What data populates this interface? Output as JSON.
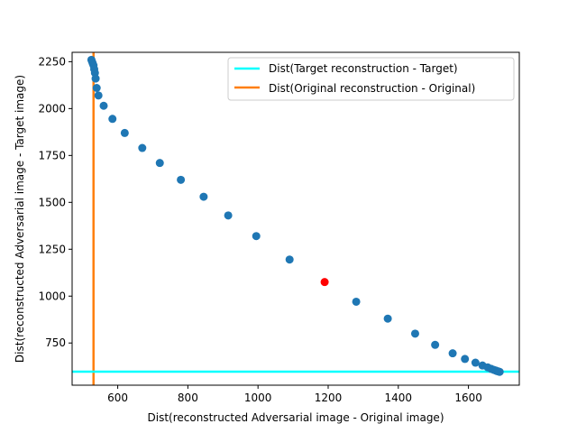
{
  "chart_data": {
    "type": "scatter",
    "title": "",
    "xlabel": "Dist(reconstructed Adversarial image - Original image)",
    "ylabel": "Dist(reconstructed Adversarial image - Target image)",
    "xlim": [
      470,
      1745
    ],
    "ylim": [
      525,
      2300
    ],
    "xticks": [
      400,
      600,
      800,
      1000,
      1200,
      1400,
      1600
    ],
    "yticks": [
      750,
      1000,
      1250,
      1500,
      1750,
      2000,
      2250
    ],
    "grid": false,
    "legend_position": "top-right",
    "points_color": "#1f77b4",
    "highlight_color": "#ff0000",
    "points": [
      {
        "x": 525,
        "y": 2260
      },
      {
        "x": 527,
        "y": 2250
      },
      {
        "x": 529,
        "y": 2240
      },
      {
        "x": 531,
        "y": 2230
      },
      {
        "x": 533,
        "y": 2210
      },
      {
        "x": 535,
        "y": 2190
      },
      {
        "x": 537,
        "y": 2160
      },
      {
        "x": 540,
        "y": 2110
      },
      {
        "x": 545,
        "y": 2070
      },
      {
        "x": 560,
        "y": 2015
      },
      {
        "x": 585,
        "y": 1945
      },
      {
        "x": 620,
        "y": 1870
      },
      {
        "x": 670,
        "y": 1790
      },
      {
        "x": 720,
        "y": 1710
      },
      {
        "x": 780,
        "y": 1620
      },
      {
        "x": 845,
        "y": 1530
      },
      {
        "x": 915,
        "y": 1430
      },
      {
        "x": 995,
        "y": 1320
      },
      {
        "x": 1090,
        "y": 1195
      },
      {
        "x": 1280,
        "y": 970
      },
      {
        "x": 1370,
        "y": 880
      },
      {
        "x": 1448,
        "y": 800
      },
      {
        "x": 1505,
        "y": 740
      },
      {
        "x": 1555,
        "y": 695
      },
      {
        "x": 1590,
        "y": 665
      },
      {
        "x": 1620,
        "y": 645
      },
      {
        "x": 1640,
        "y": 630
      },
      {
        "x": 1655,
        "y": 620
      },
      {
        "x": 1665,
        "y": 612
      },
      {
        "x": 1672,
        "y": 607
      },
      {
        "x": 1678,
        "y": 603
      },
      {
        "x": 1682,
        "y": 600
      },
      {
        "x": 1686,
        "y": 598
      },
      {
        "x": 1689,
        "y": 596
      }
    ],
    "highlight_point": {
      "x": 1190,
      "y": 1075
    },
    "lines": [
      {
        "name": "Dist(Target reconstruction - Target)",
        "orientation": "horizontal",
        "value": 597,
        "color": "#00ffff"
      },
      {
        "name": "Dist(Original reconstruction - Original)",
        "orientation": "vertical",
        "value": 531,
        "color": "#ff7f0e"
      }
    ]
  }
}
